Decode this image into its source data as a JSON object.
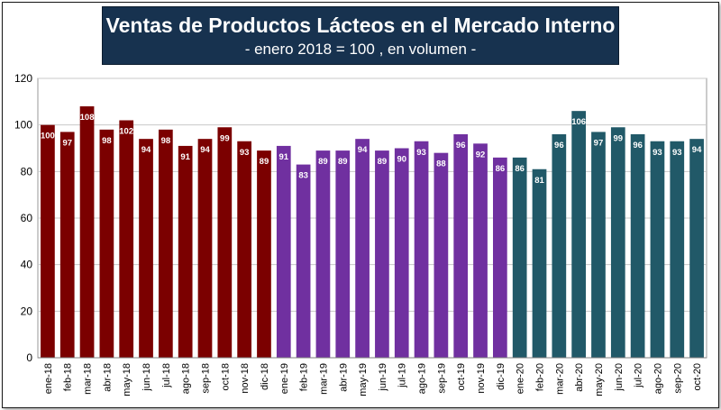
{
  "header": {
    "title": "Ventas de Productos Lácteos en el Mercado Interno",
    "subtitle": "- enero 2018 = 100 , en volumen -"
  },
  "colors": {
    "y2018": "#7b0000",
    "y2019": "#7030a0",
    "y2020": "#215968",
    "title_bg": "#17324f"
  },
  "chart_data": {
    "type": "bar",
    "title": "Ventas de Productos Lácteos en el Mercado Interno",
    "subtitle": "- enero 2018 = 100 , en volumen -",
    "xlabel": "",
    "ylabel": "",
    "ylim": [
      0,
      120
    ],
    "yticks": [
      0,
      20,
      40,
      60,
      80,
      100,
      120
    ],
    "grid": true,
    "legend": "none",
    "categories": [
      "ene-18",
      "feb-18",
      "mar-18",
      "abr-18",
      "may-18",
      "jun-18",
      "jul-18",
      "ago-18",
      "sep-18",
      "oct-18",
      "nov-18",
      "dic-18",
      "ene-19",
      "feb-19",
      "mar-19",
      "abr-19",
      "may-19",
      "jun-19",
      "jul-19",
      "ago-19",
      "sep-19",
      "oct-19",
      "nov-19",
      "dic-19",
      "ene-20",
      "feb-20",
      "mar-20",
      "abr-20",
      "may-20",
      "jun-20",
      "jul-20",
      "ago-20",
      "sep-20",
      "oct-20"
    ],
    "values": [
      100,
      97,
      108,
      98,
      102,
      94,
      98,
      91,
      94,
      99,
      93,
      89,
      91,
      83,
      89,
      89,
      94,
      89,
      90,
      93,
      88,
      96,
      92,
      86,
      86,
      81,
      96,
      106,
      97,
      99,
      96,
      93,
      93,
      94
    ],
    "value_labels": [
      "100",
      "97",
      "108",
      "98",
      "102",
      "94",
      "98",
      "91",
      "94",
      "99",
      "93",
      "89",
      "91",
      "83",
      "89",
      "89",
      "94",
      "89",
      "90",
      "93",
      "88",
      "96",
      "92",
      "86",
      "86",
      "81",
      "96",
      "106",
      "97",
      "99",
      "96",
      "93",
      "93",
      "94"
    ],
    "color_groups": [
      "y2018",
      "y2018",
      "y2018",
      "y2018",
      "y2018",
      "y2018",
      "y2018",
      "y2018",
      "y2018",
      "y2018",
      "y2018",
      "y2018",
      "y2019",
      "y2019",
      "y2019",
      "y2019",
      "y2019",
      "y2019",
      "y2019",
      "y2019",
      "y2019",
      "y2019",
      "y2019",
      "y2019",
      "y2020",
      "y2020",
      "y2020",
      "y2020",
      "y2020",
      "y2020",
      "y2020",
      "y2020",
      "y2020",
      "y2020"
    ]
  }
}
